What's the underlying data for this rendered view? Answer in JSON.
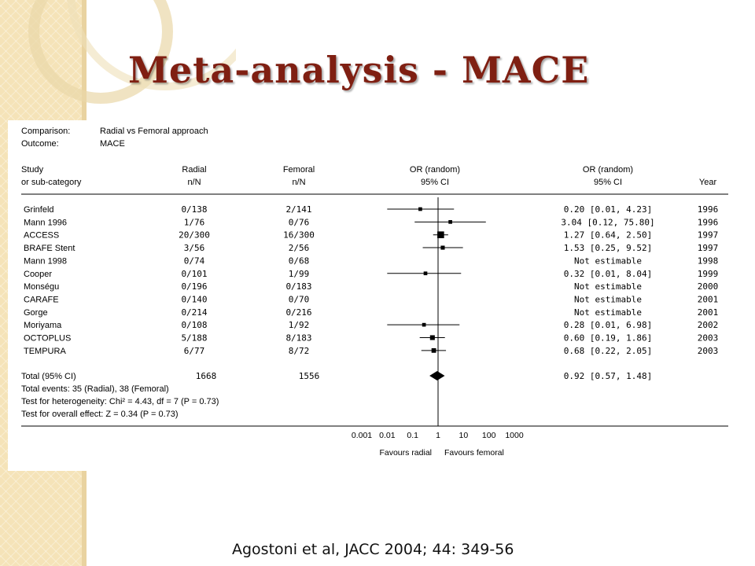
{
  "slide": {
    "title": "Meta-analysis - MACE",
    "citation": "Agostoni et al, JACC 2004; 44: 349-56"
  },
  "header": {
    "comparison_label": "Comparison:",
    "comparison_value": "Radial vs Femoral approach",
    "outcome_label": "Outcome:",
    "outcome_value": "MACE"
  },
  "columns": {
    "study": [
      "Study",
      "or sub-category"
    ],
    "radial": [
      "Radial",
      "n/N"
    ],
    "femoral": [
      "Femoral",
      "n/N"
    ],
    "plot": [
      "OR (random)",
      "95% CI"
    ],
    "or_ci": [
      "OR (random)",
      "95% CI"
    ],
    "year": [
      "",
      "Year"
    ]
  },
  "summary_text": {
    "total_events": "Total events: 35 (Radial), 38 (Femoral)",
    "heterogeneity": "Test for heterogeneity: Chi² = 4.43, df = 7 (P = 0.73)",
    "overall_effect": "Test for overall effect: Z = 0.34 (P = 0.73)"
  },
  "colors": {
    "ink": "#000000",
    "title": "#7f1f12",
    "band": "#f5e3b8"
  },
  "chart_data": {
    "type": "forest",
    "xlabel_left": "Favours radial",
    "xlabel_right": "Favours femoral",
    "xscale": "log",
    "xlim": [
      0.001,
      1000
    ],
    "x_ticks": [
      "0.001",
      "0.01",
      "0.1",
      "1",
      "10",
      "100",
      "1000"
    ],
    "studies": [
      {
        "name": "Grinfeld",
        "radial": "0/138",
        "femoral": "2/141",
        "or_text": "0.20 [0.01, 4.23]",
        "year": "1996",
        "or": 0.2,
        "lo": 0.01,
        "hi": 4.23,
        "weight": 1.2
      },
      {
        "name": "Mann 1996",
        "radial": "1/76",
        "femoral": "0/76",
        "or_text": "3.04 [0.12, 75.80]",
        "year": "1996",
        "or": 3.04,
        "lo": 0.12,
        "hi": 75.8,
        "weight": 1.2
      },
      {
        "name": "ACCESS",
        "radial": "20/300",
        "femoral": "16/300",
        "or_text": "1.27 [0.64, 2.50]",
        "year": "1997",
        "or": 1.27,
        "lo": 0.64,
        "hi": 2.5,
        "weight": 4.0
      },
      {
        "name": "BRAFE Stent",
        "radial": "3/56",
        "femoral": "2/56",
        "or_text": "1.53 [0.25, 9.52]",
        "year": "1997",
        "or": 1.53,
        "lo": 0.25,
        "hi": 9.52,
        "weight": 1.5
      },
      {
        "name": "Mann 1998",
        "radial": "0/74",
        "femoral": "0/68",
        "or_text": "Not estimable",
        "year": "1998",
        "or": null,
        "lo": null,
        "hi": null,
        "weight": 0
      },
      {
        "name": "Cooper",
        "radial": "0/101",
        "femoral": "1/99",
        "or_text": "0.32 [0.01, 8.04]",
        "year": "1999",
        "or": 0.32,
        "lo": 0.01,
        "hi": 8.04,
        "weight": 1.2
      },
      {
        "name": "Monségu",
        "radial": "0/196",
        "femoral": "0/183",
        "or_text": "Not estimable",
        "year": "2000",
        "or": null,
        "lo": null,
        "hi": null,
        "weight": 0
      },
      {
        "name": "CARAFE",
        "radial": "0/140",
        "femoral": "0/70",
        "or_text": "Not estimable",
        "year": "2001",
        "or": null,
        "lo": null,
        "hi": null,
        "weight": 0
      },
      {
        "name": "Gorge",
        "radial": "0/214",
        "femoral": "0/216",
        "or_text": "Not estimable",
        "year": "2001",
        "or": null,
        "lo": null,
        "hi": null,
        "weight": 0
      },
      {
        "name": "Moriyama",
        "radial": "0/108",
        "femoral": "1/92",
        "or_text": "0.28 [0.01, 6.98]",
        "year": "2002",
        "or": 0.28,
        "lo": 0.01,
        "hi": 6.98,
        "weight": 1.2
      },
      {
        "name": "OCTOPLUS",
        "radial": "5/188",
        "femoral": "8/183",
        "or_text": "0.60 [0.19, 1.86]",
        "year": "2003",
        "or": 0.6,
        "lo": 0.19,
        "hi": 1.86,
        "weight": 2.2
      },
      {
        "name": "TEMPURA",
        "radial": "6/77",
        "femoral": "8/72",
        "or_text": "0.68 [0.22, 2.05]",
        "year": "2003",
        "or": 0.68,
        "lo": 0.22,
        "hi": 2.05,
        "weight": 2.0
      }
    ],
    "total": {
      "name": "Total (95% CI)",
      "radial": "1668",
      "femoral": "1556",
      "or_text": "0.92 [0.57, 1.48]",
      "or": 0.92,
      "lo": 0.57,
      "hi": 1.48
    }
  }
}
